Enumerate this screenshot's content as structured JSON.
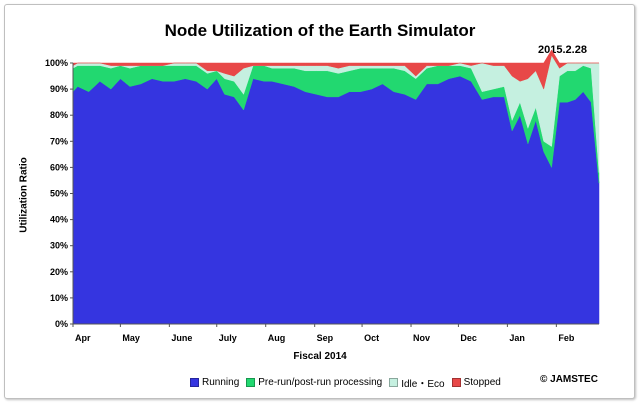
{
  "chart_data": {
    "type": "area",
    "stacked": true,
    "title": "Node Utilization of the Earth Simulator",
    "date_stamp": "2015.2.28",
    "xlabel": "Fiscal 2014",
    "ylabel": "Utilization Ratio",
    "ylim": [
      0,
      100
    ],
    "y_ticks": [
      "0%",
      "10%",
      "20%",
      "30%",
      "40%",
      "50%",
      "60%",
      "70%",
      "80%",
      "90%",
      "100%"
    ],
    "x_range": [
      "2014-04-01",
      "2015-02-28"
    ],
    "x_ticks": [
      {
        "label": "Apr",
        "date": "2014-04-01"
      },
      {
        "label": "May",
        "date": "2014-05-01"
      },
      {
        "label": "June",
        "date": "2014-06-01"
      },
      {
        "label": "July",
        "date": "2014-07-01"
      },
      {
        "label": "Aug",
        "date": "2014-08-01"
      },
      {
        "label": "Sep",
        "date": "2014-09-01"
      },
      {
        "label": "Oct",
        "date": "2014-10-01"
      },
      {
        "label": "Nov",
        "date": "2014-11-01"
      },
      {
        "label": "Dec",
        "date": "2014-12-01"
      },
      {
        "label": "Jan",
        "date": "2015-01-01"
      },
      {
        "label": "Feb",
        "date": "2015-02-01"
      }
    ],
    "x": [
      "2014-04-01",
      "2014-04-04",
      "2014-04-11",
      "2014-04-18",
      "2014-04-25",
      "2014-05-01",
      "2014-05-07",
      "2014-05-14",
      "2014-05-21",
      "2014-05-28",
      "2014-06-04",
      "2014-06-11",
      "2014-06-18",
      "2014-06-25",
      "2014-07-01",
      "2014-07-06",
      "2014-07-12",
      "2014-07-18",
      "2014-07-24",
      "2014-07-31",
      "2014-08-05",
      "2014-08-12",
      "2014-08-19",
      "2014-08-26",
      "2014-09-02",
      "2014-09-09",
      "2014-09-16",
      "2014-09-23",
      "2014-09-30",
      "2014-10-07",
      "2014-10-14",
      "2014-10-21",
      "2014-10-28",
      "2014-11-04",
      "2014-11-11",
      "2014-11-18",
      "2014-11-25",
      "2014-12-02",
      "2014-12-09",
      "2014-12-16",
      "2014-12-23",
      "2014-12-30",
      "2015-01-04",
      "2015-01-09",
      "2015-01-14",
      "2015-01-19",
      "2015-01-24",
      "2015-01-29",
      "2015-02-03",
      "2015-02-08",
      "2015-02-13",
      "2015-02-18",
      "2015-02-23",
      "2015-02-28"
    ],
    "series": [
      {
        "name": "Running",
        "color": "#3535e0",
        "values": [
          89,
          91,
          89,
          93,
          90,
          94,
          91,
          92,
          94,
          93,
          93,
          94,
          93,
          90,
          94,
          88,
          87,
          82,
          94,
          93,
          93,
          92,
          91,
          89,
          88,
          87,
          87,
          89,
          89,
          90,
          92,
          89,
          88,
          86,
          92,
          92,
          94,
          95,
          93,
          86,
          87,
          87,
          74,
          80,
          69,
          78,
          66,
          60,
          85,
          85,
          86,
          89,
          85,
          54
        ]
      },
      {
        "name": "Pre-run/post-run processing",
        "color": "#22d870",
        "values": [
          9,
          8,
          10,
          6,
          8,
          5,
          7,
          7,
          5,
          6,
          6,
          5,
          6,
          6,
          3,
          6,
          6,
          6,
          5,
          6,
          5,
          6,
          7,
          8,
          9,
          10,
          9,
          8,
          9,
          8,
          6,
          9,
          9,
          8,
          6,
          7,
          5,
          4,
          5,
          3,
          3,
          4,
          4,
          5,
          6,
          5,
          4,
          8,
          10,
          12,
          11,
          10,
          13,
          4
        ]
      },
      {
        "name": "Idle・Eco",
        "color": "#c5f0e0",
        "values": [
          1,
          1,
          1,
          1,
          1,
          0,
          1,
          0,
          0,
          0,
          1,
          1,
          1,
          1,
          0,
          2,
          2,
          10,
          0,
          0,
          1,
          1,
          1,
          2,
          2,
          2,
          2,
          2,
          1,
          1,
          1,
          1,
          2,
          1,
          1,
          0,
          0,
          1,
          1,
          11,
          9,
          8,
          17,
          8,
          19,
          14,
          20,
          35,
          3,
          3,
          3,
          1,
          2,
          42
        ]
      },
      {
        "name": "Stopped",
        "color": "#e84848",
        "values": [
          1,
          0,
          0,
          0,
          1,
          1,
          1,
          1,
          1,
          1,
          0,
          0,
          0,
          3,
          3,
          4,
          5,
          2,
          1,
          1,
          1,
          1,
          1,
          1,
          1,
          1,
          2,
          1,
          1,
          1,
          1,
          1,
          1,
          5,
          1,
          1,
          1,
          0,
          1,
          0,
          1,
          1,
          5,
          7,
          6,
          3,
          10,
          2,
          2,
          0,
          0,
          0,
          0,
          0
        ]
      }
    ],
    "grid": false,
    "legend_position": "bottom",
    "background_gradient": [
      "#b0d8f4",
      "#eaf5fc"
    ]
  },
  "legend": {
    "items": [
      {
        "label": "Running",
        "color": "#3535e0"
      },
      {
        "label": "Pre-run/post-run processing",
        "color": "#22d870"
      },
      {
        "label": "Idle・Eco",
        "color": "#c5f0e0"
      },
      {
        "label": "Stopped",
        "color": "#e84848"
      }
    ]
  },
  "copyright": "© JAMSTEC"
}
